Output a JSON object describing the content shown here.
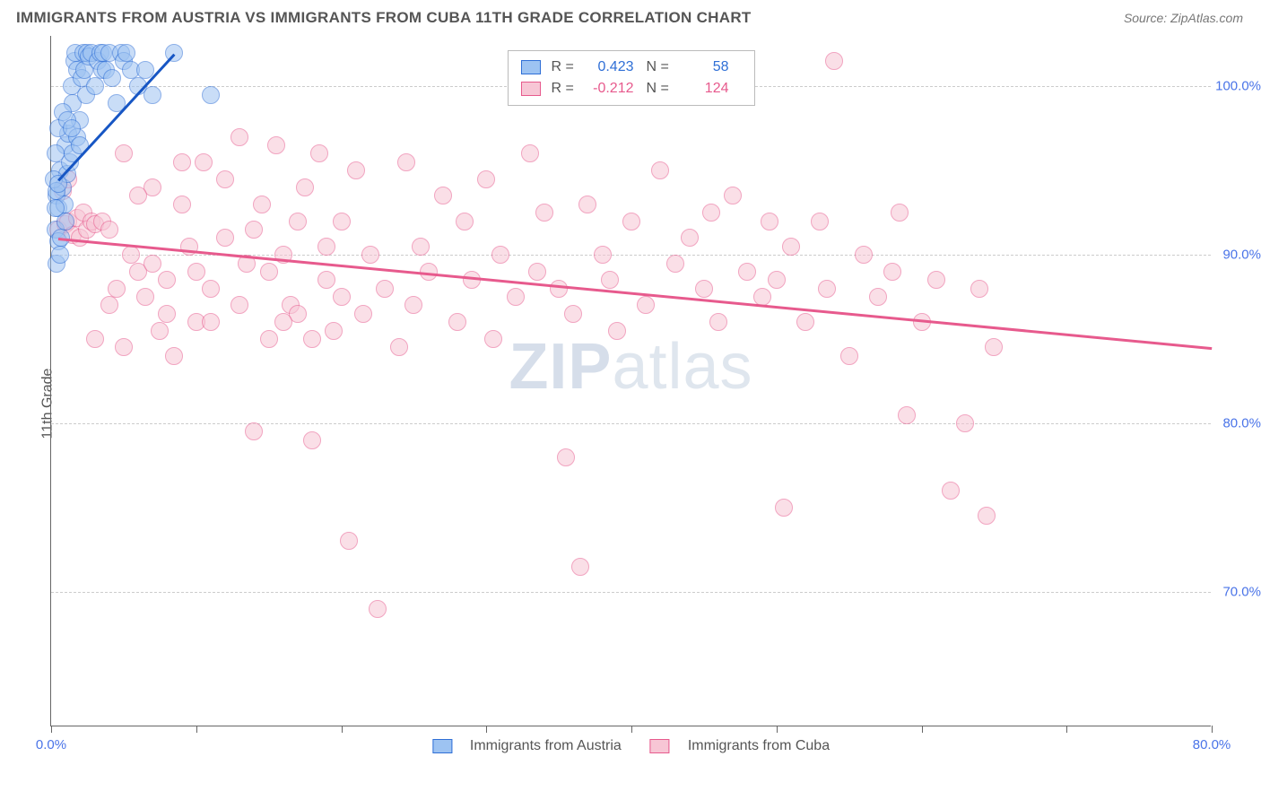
{
  "header": {
    "title": "IMMIGRANTS FROM AUSTRIA VS IMMIGRANTS FROM CUBA 11TH GRADE CORRELATION CHART",
    "source": "Source: ZipAtlas.com"
  },
  "chart": {
    "type": "scatter",
    "ylabel": "11th Grade",
    "background_color": "#ffffff",
    "grid_color": "#cccccc",
    "axis_color": "#666666",
    "tick_label_color": "#4a74e8",
    "xlim": [
      0,
      80
    ],
    "ylim": [
      62,
      103
    ],
    "x_ticks": [
      0,
      10,
      20,
      30,
      40,
      50,
      60,
      70,
      80
    ],
    "x_tick_labels": {
      "0": "0.0%",
      "80": "80.0%"
    },
    "y_ticks": [
      70,
      80,
      90,
      100
    ],
    "y_tick_labels": {
      "70": "70.0%",
      "80": "80.0%",
      "90": "90.0%",
      "100": "100.0%"
    },
    "watermark": {
      "text_a": "ZIP",
      "text_b": "atlas"
    },
    "marker_radius": 10,
    "marker_stroke_width": 1.5,
    "series": [
      {
        "name": "Immigrants from Austria",
        "fill": "#9dc3f2",
        "stroke": "#2f6fd6",
        "fill_opacity": 0.55,
        "R": "0.423",
        "N": "58",
        "stat_color": "#2f6fd6",
        "regression": {
          "x0": 0.5,
          "y0": 94.5,
          "x1": 8.5,
          "y1": 102.0,
          "color": "#1756c4",
          "width": 2.5
        },
        "points": [
          [
            0.4,
            93.5
          ],
          [
            0.5,
            92.8
          ],
          [
            0.6,
            95.0
          ],
          [
            0.8,
            94.0
          ],
          [
            1.0,
            96.5
          ],
          [
            1.1,
            94.8
          ],
          [
            1.2,
            97.2
          ],
          [
            1.4,
            100.0
          ],
          [
            1.5,
            99.0
          ],
          [
            1.6,
            101.5
          ],
          [
            1.7,
            102.0
          ],
          [
            1.8,
            101.0
          ],
          [
            2.0,
            98.0
          ],
          [
            2.1,
            100.5
          ],
          [
            2.2,
            102.0
          ],
          [
            2.3,
            101.0
          ],
          [
            2.4,
            99.5
          ],
          [
            2.5,
            102.0
          ],
          [
            2.6,
            101.8
          ],
          [
            2.8,
            102.0
          ],
          [
            3.0,
            100.0
          ],
          [
            3.2,
            101.5
          ],
          [
            3.4,
            102.0
          ],
          [
            3.5,
            101.0
          ],
          [
            3.6,
            102.0
          ],
          [
            3.8,
            101.0
          ],
          [
            4.0,
            102.0
          ],
          [
            4.2,
            100.5
          ],
          [
            4.5,
            99.0
          ],
          [
            4.8,
            102.0
          ],
          [
            5.0,
            101.5
          ],
          [
            5.2,
            102.0
          ],
          [
            5.5,
            101.0
          ],
          [
            6.0,
            100.0
          ],
          [
            6.5,
            101.0
          ],
          [
            7.0,
            99.5
          ],
          [
            8.5,
            102.0
          ],
          [
            0.3,
            91.5
          ],
          [
            0.5,
            90.8
          ],
          [
            0.7,
            91.0
          ],
          [
            0.9,
            93.0
          ],
          [
            1.0,
            92.0
          ],
          [
            1.3,
            95.5
          ],
          [
            1.5,
            96.0
          ],
          [
            1.8,
            97.0
          ],
          [
            2.0,
            96.5
          ],
          [
            0.4,
            89.5
          ],
          [
            0.6,
            90.0
          ],
          [
            0.2,
            94.5
          ],
          [
            0.3,
            96.0
          ],
          [
            0.5,
            97.5
          ],
          [
            0.8,
            98.5
          ],
          [
            1.1,
            98.0
          ],
          [
            1.4,
            97.5
          ],
          [
            11.0,
            99.5
          ],
          [
            0.3,
            92.8
          ],
          [
            0.4,
            93.8
          ],
          [
            0.5,
            94.2
          ]
        ]
      },
      {
        "name": "Immigrants from Cuba",
        "fill": "#f7c6d5",
        "stroke": "#e75a8d",
        "fill_opacity": 0.55,
        "R": "-0.212",
        "N": "124",
        "stat_color": "#e75a8d",
        "regression": {
          "x0": 0.5,
          "y0": 91.0,
          "x1": 80.0,
          "y1": 84.5,
          "color": "#e75a8d",
          "width": 2.5
        },
        "points": [
          [
            0.5,
            91.5
          ],
          [
            1.0,
            91.8
          ],
          [
            1.2,
            92.0
          ],
          [
            1.5,
            91.2
          ],
          [
            1.8,
            92.2
          ],
          [
            2.0,
            91.0
          ],
          [
            2.2,
            92.5
          ],
          [
            2.5,
            91.5
          ],
          [
            2.8,
            92.0
          ],
          [
            3.0,
            91.8
          ],
          [
            3.5,
            92.0
          ],
          [
            4.0,
            91.5
          ],
          [
            4.5,
            88.0
          ],
          [
            5.0,
            96.0
          ],
          [
            5.5,
            90.0
          ],
          [
            6.0,
            89.0
          ],
          [
            6.5,
            87.5
          ],
          [
            7.0,
            94.0
          ],
          [
            7.5,
            85.5
          ],
          [
            8.0,
            88.5
          ],
          [
            8.5,
            84.0
          ],
          [
            9.0,
            93.0
          ],
          [
            9.5,
            90.5
          ],
          [
            10.0,
            86.0
          ],
          [
            10.5,
            95.5
          ],
          [
            11.0,
            88.0
          ],
          [
            12.0,
            91.0
          ],
          [
            13.0,
            97.0
          ],
          [
            13.5,
            89.5
          ],
          [
            14.0,
            79.5
          ],
          [
            14.5,
            93.0
          ],
          [
            15.0,
            85.0
          ],
          [
            15.5,
            96.5
          ],
          [
            16.0,
            90.0
          ],
          [
            16.5,
            87.0
          ],
          [
            17.0,
            86.5
          ],
          [
            17.5,
            94.0
          ],
          [
            18.0,
            79.0
          ],
          [
            18.5,
            96.0
          ],
          [
            19.0,
            88.5
          ],
          [
            19.5,
            85.5
          ],
          [
            20.0,
            92.0
          ],
          [
            20.5,
            73.0
          ],
          [
            21.0,
            95.0
          ],
          [
            21.5,
            86.5
          ],
          [
            22.0,
            90.0
          ],
          [
            22.5,
            69.0
          ],
          [
            23.0,
            88.0
          ],
          [
            24.0,
            84.5
          ],
          [
            24.5,
            95.5
          ],
          [
            25.0,
            87.0
          ],
          [
            25.5,
            90.5
          ],
          [
            26.0,
            89.0
          ],
          [
            27.0,
            93.5
          ],
          [
            28.0,
            86.0
          ],
          [
            28.5,
            92.0
          ],
          [
            29.0,
            88.5
          ],
          [
            30.0,
            94.5
          ],
          [
            30.5,
            85.0
          ],
          [
            31.0,
            90.0
          ],
          [
            32.0,
            87.5
          ],
          [
            33.0,
            96.0
          ],
          [
            33.5,
            89.0
          ],
          [
            34.0,
            92.5
          ],
          [
            35.0,
            88.0
          ],
          [
            35.5,
            78.0
          ],
          [
            36.0,
            86.5
          ],
          [
            36.5,
            71.5
          ],
          [
            37.0,
            93.0
          ],
          [
            38.0,
            90.0
          ],
          [
            38.5,
            88.5
          ],
          [
            39.0,
            85.5
          ],
          [
            40.0,
            92.0
          ],
          [
            41.0,
            87.0
          ],
          [
            42.0,
            95.0
          ],
          [
            43.0,
            89.5
          ],
          [
            44.0,
            91.0
          ],
          [
            45.0,
            88.0
          ],
          [
            45.5,
            92.5
          ],
          [
            46.0,
            86.0
          ],
          [
            47.0,
            93.5
          ],
          [
            48.0,
            89.0
          ],
          [
            49.0,
            87.5
          ],
          [
            49.5,
            92.0
          ],
          [
            50.0,
            88.5
          ],
          [
            50.5,
            75.0
          ],
          [
            51.0,
            90.5
          ],
          [
            52.0,
            86.0
          ],
          [
            53.0,
            92.0
          ],
          [
            53.5,
            88.0
          ],
          [
            54.0,
            101.5
          ],
          [
            55.0,
            84.0
          ],
          [
            56.0,
            90.0
          ],
          [
            57.0,
            87.5
          ],
          [
            58.0,
            89.0
          ],
          [
            58.5,
            92.5
          ],
          [
            59.0,
            80.5
          ],
          [
            60.0,
            86.0
          ],
          [
            61.0,
            88.5
          ],
          [
            62.0,
            76.0
          ],
          [
            63.0,
            80.0
          ],
          [
            64.0,
            88.0
          ],
          [
            64.5,
            74.5
          ],
          [
            65.0,
            84.5
          ],
          [
            3.0,
            85.0
          ],
          [
            4.0,
            87.0
          ],
          [
            5.0,
            84.5
          ],
          [
            6.0,
            93.5
          ],
          [
            7.0,
            89.5
          ],
          [
            8.0,
            86.5
          ],
          [
            9.0,
            95.5
          ],
          [
            10.0,
            89.0
          ],
          [
            11.0,
            86.0
          ],
          [
            12.0,
            94.5
          ],
          [
            13.0,
            87.0
          ],
          [
            14.0,
            91.5
          ],
          [
            15.0,
            89.0
          ],
          [
            16.0,
            86.0
          ],
          [
            17.0,
            92.0
          ],
          [
            18.0,
            85.0
          ],
          [
            19.0,
            90.5
          ],
          [
            20.0,
            87.5
          ],
          [
            0.8,
            93.8
          ],
          [
            1.2,
            94.5
          ]
        ]
      }
    ],
    "legend_bottom": [
      {
        "label": "Immigrants from Austria",
        "fill": "#9dc3f2",
        "stroke": "#2f6fd6"
      },
      {
        "label": "Immigrants from Cuba",
        "fill": "#f7c6d5",
        "stroke": "#e75a8d"
      }
    ]
  }
}
